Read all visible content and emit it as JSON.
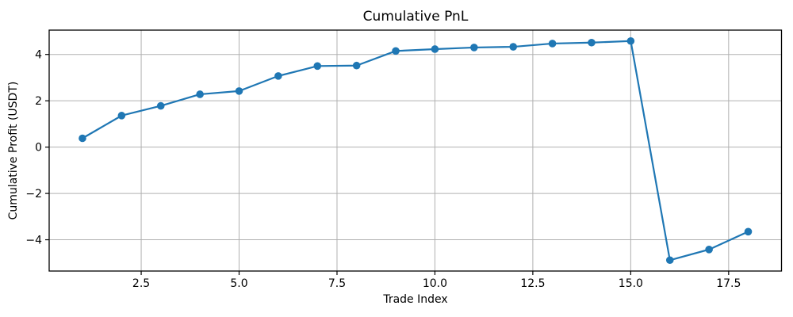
{
  "chart_data": {
    "type": "line",
    "title": "Cumulative PnL",
    "xlabel": "Trade Index",
    "ylabel": "Cumulative Profit (USDT)",
    "x": [
      1,
      2,
      3,
      4,
      5,
      6,
      7,
      8,
      9,
      10,
      11,
      12,
      13,
      14,
      15,
      16,
      17,
      18
    ],
    "y": [
      0.38,
      1.36,
      1.78,
      2.28,
      2.42,
      3.07,
      3.5,
      3.52,
      4.15,
      4.23,
      4.3,
      4.33,
      4.47,
      4.51,
      4.58,
      -4.88,
      -4.42,
      -3.65
    ],
    "xlim": [
      0.15,
      18.85
    ],
    "ylim": [
      -5.35,
      5.05
    ],
    "xticks": {
      "values": [
        2.5,
        5.0,
        7.5,
        10.0,
        12.5,
        15.0,
        17.5
      ],
      "labels": [
        "2.5",
        "5.0",
        "7.5",
        "10.0",
        "12.5",
        "15.0",
        "17.5"
      ]
    },
    "yticks": {
      "values": [
        -4,
        -2,
        0,
        2,
        4
      ],
      "labels": [
        "−4",
        "−2",
        "0",
        "2",
        "4"
      ]
    },
    "grid": true,
    "legend": "none",
    "line_color": "#1f77b4",
    "marker": "circle",
    "grid_color": "#b0b0b0",
    "spine_color": "#000000",
    "background_color": "#ffffff"
  }
}
